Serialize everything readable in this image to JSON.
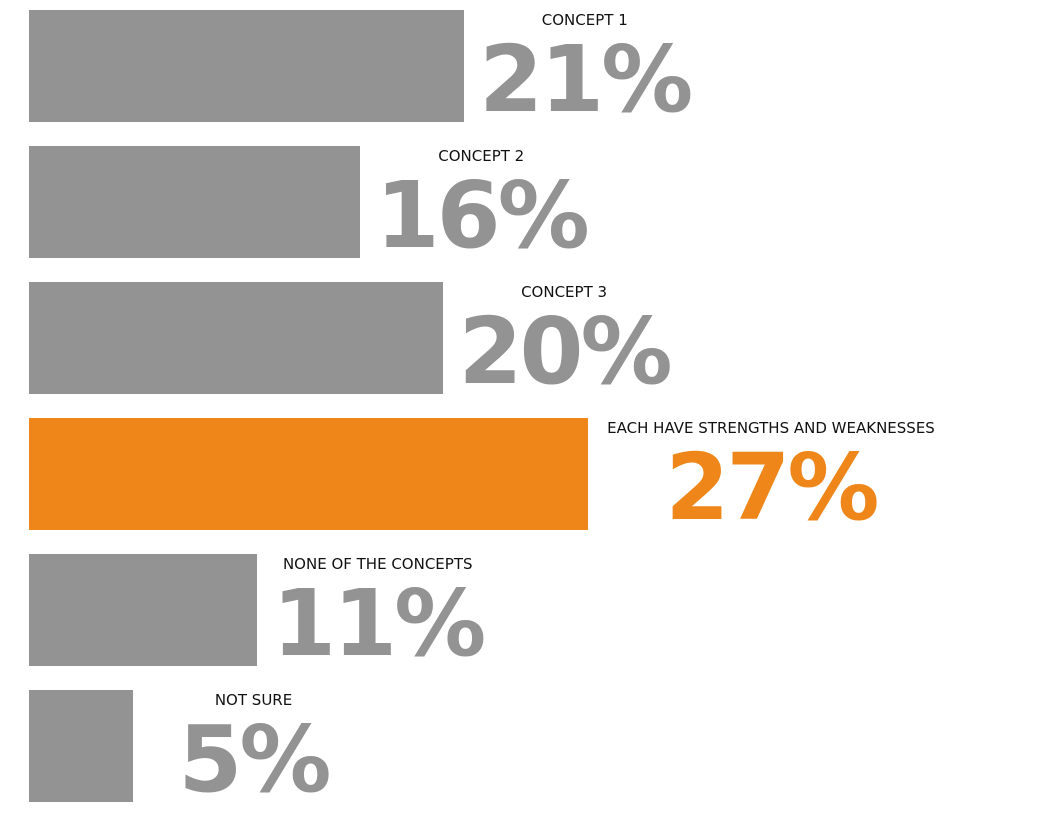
{
  "chart_data": {
    "type": "bar",
    "orientation": "horizontal",
    "categories": [
      "CONCEPT 1",
      "CONCEPT 2",
      "CONCEPT 3",
      "EACH HAVE STRENGTHS AND WEAKNESSES",
      "NONE OF THE CONCEPTS",
      "NOT SURE"
    ],
    "values": [
      21,
      16,
      20,
      27,
      11,
      5
    ],
    "value_labels": [
      "21%",
      "16%",
      "20%",
      "27%",
      "11%",
      "5%"
    ],
    "highlight_index": 3,
    "colors": {
      "default": "#939393",
      "highlight": "#EE861A",
      "category_text": "#111111"
    },
    "xlim": [
      0,
      27
    ],
    "grid": false,
    "legend": "none"
  }
}
